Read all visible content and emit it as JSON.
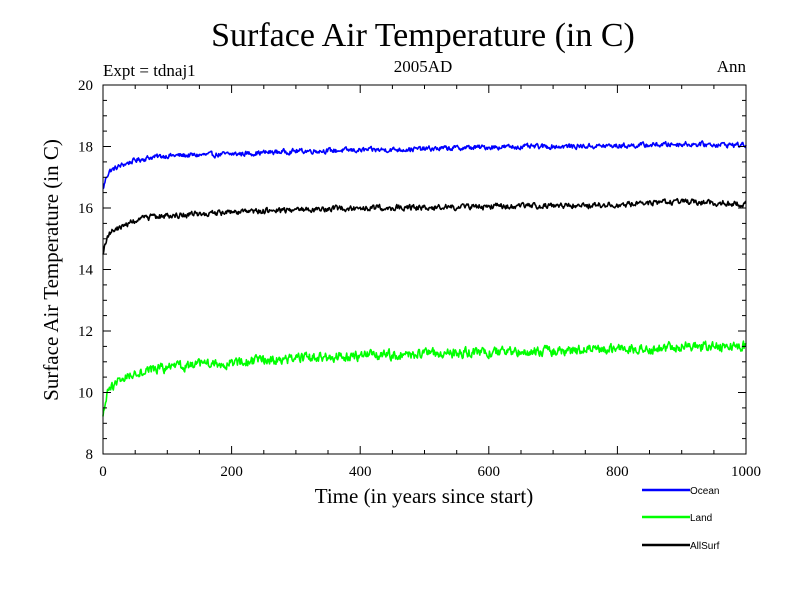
{
  "chart_data": {
    "type": "line",
    "title": "Surface Air Temperature (in C)",
    "subtitle_left": "Expt = tdnaj1",
    "subtitle_center": "2005AD",
    "subtitle_right": "Ann",
    "xlabel": "Time (in years since start)",
    "ylabel": "Surface Air Temperature (in C)",
    "xlim": [
      0,
      1000
    ],
    "ylim": [
      8,
      20
    ],
    "xticks": [
      0,
      200,
      400,
      600,
      800,
      1000
    ],
    "yticks": [
      8,
      10,
      12,
      14,
      16,
      18,
      20
    ],
    "grid": false,
    "legend_position": "bottom-right",
    "x": [
      0,
      5,
      10,
      20,
      30,
      50,
      75,
      100,
      150,
      200,
      250,
      300,
      400,
      500,
      600,
      700,
      800,
      900,
      1000
    ],
    "series": [
      {
        "name": "Ocean",
        "color": "#0000ff",
        "noise": 0.07,
        "values": [
          16.6,
          17.0,
          17.2,
          17.3,
          17.4,
          17.55,
          17.65,
          17.7,
          17.72,
          17.75,
          17.8,
          17.85,
          17.88,
          17.92,
          17.98,
          18.0,
          18.02,
          18.08,
          18.05
        ]
      },
      {
        "name": "Land",
        "color": "#00ff00",
        "noise": 0.14,
        "values": [
          9.2,
          9.8,
          10.1,
          10.3,
          10.45,
          10.65,
          10.75,
          10.8,
          10.9,
          10.95,
          11.05,
          11.1,
          11.2,
          11.25,
          11.3,
          11.35,
          11.4,
          11.5,
          11.5
        ]
      },
      {
        "name": "AllSurf",
        "color": "#000000",
        "noise": 0.08,
        "values": [
          14.5,
          14.95,
          15.2,
          15.3,
          15.4,
          15.6,
          15.7,
          15.75,
          15.8,
          15.85,
          15.9,
          15.95,
          16.0,
          16.02,
          16.05,
          16.08,
          16.1,
          16.2,
          16.12
        ]
      }
    ]
  }
}
